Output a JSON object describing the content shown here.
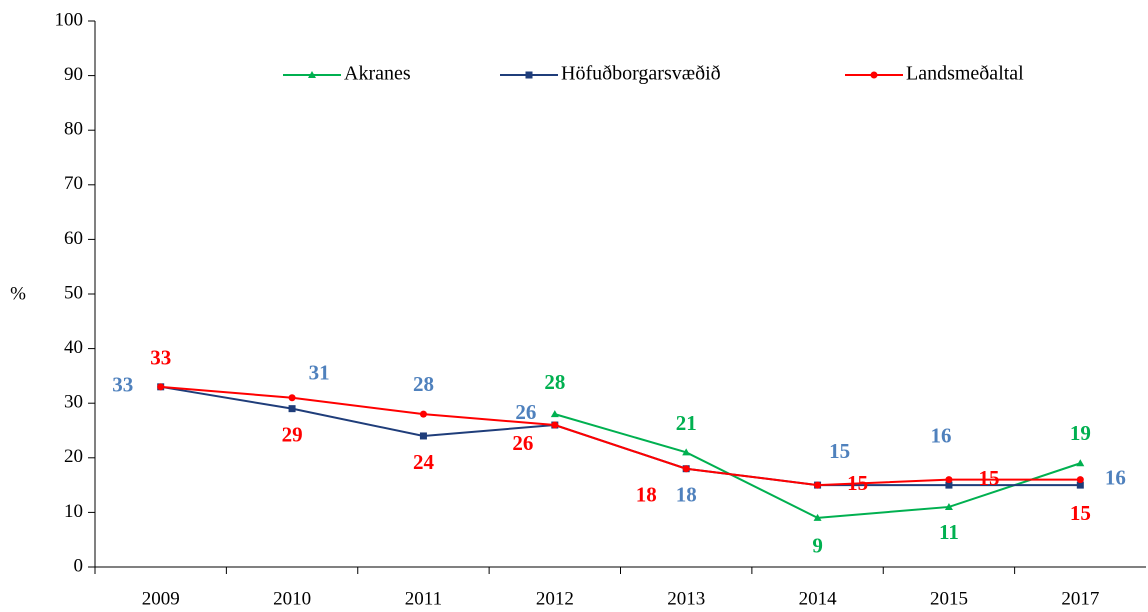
{
  "chart_data": {
    "type": "line",
    "y_label": "%",
    "categories": [
      "2009",
      "2010",
      "2011",
      "2012",
      "2013",
      "2014",
      "2015",
      "2017"
    ],
    "series": [
      {
        "name": "Akranes",
        "color": "#00b050",
        "marker": "triangle",
        "label_color": "#00b050",
        "values": [
          null,
          null,
          null,
          28,
          21,
          9,
          11,
          19
        ]
      },
      {
        "name": "Höfuðborgarsvæðið",
        "color": "#1f3d7a",
        "marker": "square",
        "label_color": "#ff0000",
        "values": [
          33,
          29,
          24,
          26,
          18,
          15,
          15,
          15
        ]
      },
      {
        "name": "Landsmeðaltal",
        "color": "#ff0000",
        "marker": "circle",
        "label_color": "#4f81bd",
        "values": [
          33,
          31,
          28,
          26,
          18,
          15,
          16,
          16
        ]
      }
    ],
    "ylim": [
      0,
      100
    ],
    "yticks": [
      0,
      10,
      20,
      30,
      40,
      50,
      60,
      70,
      80,
      90,
      100
    ],
    "legend": "top"
  }
}
